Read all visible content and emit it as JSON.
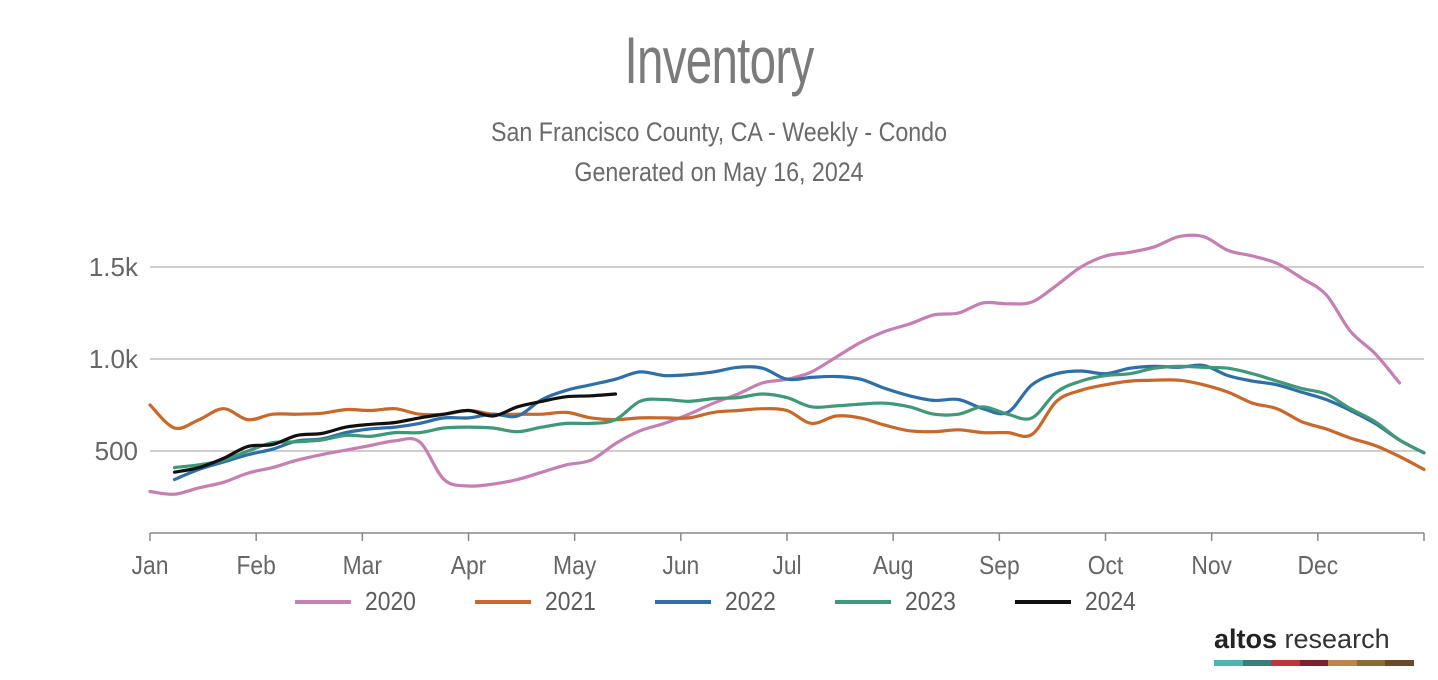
{
  "header": {
    "title": "Inventory",
    "subtitle_line1": "San Francisco County, CA - Weekly - Condo",
    "subtitle_line2": "Generated on May 16, 2024"
  },
  "brand": {
    "name_bold": "altos",
    "name_rest": " research",
    "bar_colors": [
      "#4fb3b0",
      "#3a7d7a",
      "#c0353a",
      "#7a2230",
      "#b8864a",
      "#8a6a3a",
      "#6b4a2a"
    ]
  },
  "chart_data": {
    "type": "line",
    "title": "Inventory",
    "subtitle": "San Francisco County, CA - Weekly - Condo",
    "x_ticks": [
      "Jan",
      "Feb",
      "Mar",
      "Apr",
      "May",
      "Jun",
      "Jul",
      "Aug",
      "Sep",
      "Oct",
      "Nov",
      "Dec"
    ],
    "x_unit": "week of year",
    "xlim": [
      1,
      53
    ],
    "y_ticks": [
      {
        "value": 500,
        "label": "500"
      },
      {
        "value": 1000,
        "label": "1.0k"
      },
      {
        "value": 1500,
        "label": "1.5k"
      }
    ],
    "ylim": [
      100,
      1700
    ],
    "grid": "horizontal",
    "legend_position": "bottom",
    "series": [
      {
        "name": "2020",
        "color": "#c67fb2",
        "x": [
          1,
          2,
          3,
          4,
          5,
          6,
          7,
          8,
          9,
          10,
          11,
          12,
          13,
          14,
          15,
          16,
          17,
          18,
          19,
          20,
          21,
          22,
          23,
          24,
          25,
          26,
          27,
          28,
          29,
          30,
          31,
          32,
          33,
          34,
          35,
          36,
          37,
          38,
          39,
          40,
          41,
          42,
          43,
          44,
          45,
          46,
          47,
          48,
          49,
          50,
          51,
          52
        ],
        "values": [
          280,
          265,
          300,
          330,
          380,
          410,
          450,
          480,
          505,
          530,
          555,
          550,
          345,
          310,
          320,
          345,
          385,
          425,
          450,
          540,
          610,
          650,
          700,
          760,
          810,
          870,
          890,
          930,
          1010,
          1090,
          1150,
          1190,
          1240,
          1250,
          1305,
          1300,
          1310,
          1400,
          1500,
          1560,
          1580,
          1610,
          1665,
          1665,
          1590,
          1560,
          1520,
          1440,
          1350,
          1150,
          1030,
          870
        ]
      },
      {
        "name": "2021",
        "color": "#c8682b",
        "x": [
          1,
          2,
          3,
          4,
          5,
          6,
          7,
          8,
          9,
          10,
          11,
          12,
          13,
          14,
          15,
          16,
          17,
          18,
          19,
          20,
          21,
          22,
          23,
          24,
          25,
          26,
          27,
          28,
          29,
          30,
          31,
          32,
          33,
          34,
          35,
          36,
          37,
          38,
          39,
          40,
          41,
          42,
          43,
          44,
          45,
          46,
          47,
          48,
          49,
          50,
          51,
          52,
          53
        ],
        "values": [
          750,
          625,
          670,
          730,
          670,
          700,
          700,
          705,
          725,
          720,
          730,
          700,
          700,
          720,
          700,
          700,
          700,
          710,
          680,
          670,
          680,
          680,
          680,
          710,
          720,
          730,
          720,
          650,
          690,
          680,
          640,
          610,
          605,
          615,
          600,
          600,
          590,
          770,
          830,
          860,
          880,
          885,
          885,
          860,
          820,
          760,
          730,
          660,
          620,
          570,
          530,
          470,
          400
        ]
      },
      {
        "name": "2022",
        "color": "#2f6fa8",
        "x": [
          2,
          3,
          4,
          5,
          6,
          7,
          8,
          9,
          10,
          11,
          12,
          13,
          14,
          15,
          16,
          17,
          18,
          19,
          20,
          21,
          22,
          23,
          24,
          25,
          26,
          27,
          28,
          29,
          30,
          31,
          32,
          33,
          34,
          35,
          36,
          37,
          38,
          39,
          40,
          41,
          42,
          43,
          44,
          45,
          46,
          47,
          48,
          49,
          50,
          51,
          52,
          53
        ],
        "values": [
          345,
          400,
          440,
          480,
          510,
          555,
          565,
          600,
          620,
          630,
          650,
          680,
          680,
          700,
          690,
          780,
          830,
          860,
          890,
          930,
          910,
          915,
          930,
          955,
          950,
          890,
          900,
          905,
          890,
          840,
          800,
          775,
          780,
          730,
          710,
          860,
          920,
          935,
          920,
          950,
          960,
          955,
          965,
          910,
          880,
          860,
          820,
          780,
          720,
          650,
          560,
          490
        ]
      },
      {
        "name": "2023",
        "color": "#3f9878",
        "x": [
          2,
          3,
          4,
          5,
          6,
          7,
          8,
          9,
          10,
          11,
          12,
          13,
          14,
          15,
          16,
          17,
          18,
          19,
          20,
          21,
          22,
          23,
          24,
          25,
          26,
          27,
          28,
          29,
          30,
          31,
          32,
          33,
          34,
          35,
          36,
          37,
          38,
          39,
          40,
          41,
          42,
          43,
          44,
          45,
          46,
          47,
          48,
          49,
          50,
          51,
          52,
          53
        ],
        "values": [
          410,
          425,
          450,
          500,
          545,
          550,
          560,
          585,
          580,
          600,
          600,
          625,
          630,
          625,
          605,
          630,
          650,
          650,
          670,
          770,
          780,
          770,
          785,
          790,
          810,
          790,
          740,
          745,
          755,
          760,
          740,
          700,
          700,
          740,
          700,
          680,
          820,
          880,
          910,
          920,
          950,
          960,
          955,
          950,
          920,
          880,
          840,
          810,
          730,
          660,
          560,
          490
        ]
      },
      {
        "name": "2024",
        "color": "#111111",
        "x": [
          2,
          3,
          4,
          5,
          6,
          7,
          8,
          9,
          10,
          11,
          12,
          13,
          14,
          15,
          16,
          17,
          18,
          19,
          20
        ],
        "values": [
          385,
          410,
          460,
          525,
          535,
          585,
          595,
          630,
          645,
          655,
          680,
          700,
          720,
          690,
          740,
          770,
          795,
          800,
          810
        ]
      }
    ]
  }
}
